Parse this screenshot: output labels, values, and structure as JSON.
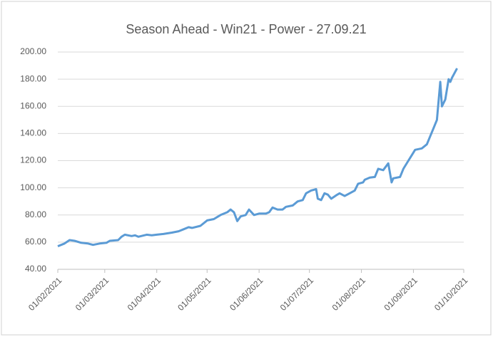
{
  "chart_data": {
    "type": "line",
    "title": "Season Ahead - Win21 - Power - 27.09.21",
    "color": "#5b9bd5",
    "grid": true,
    "x": [
      "2021-02-01",
      "2021-02-05",
      "2021-02-08",
      "2021-02-11",
      "2021-02-15",
      "2021-02-19",
      "2021-02-22",
      "2021-02-26",
      "2021-03-02",
      "2021-03-04",
      "2021-03-09",
      "2021-03-11",
      "2021-03-13",
      "2021-03-17",
      "2021-03-19",
      "2021-03-21",
      "2021-03-26",
      "2021-03-29",
      "2021-04-01",
      "2021-04-05",
      "2021-04-10",
      "2021-04-14",
      "2021-04-17",
      "2021-04-20",
      "2021-04-22",
      "2021-04-27",
      "2021-05-01",
      "2021-05-05",
      "2021-05-09",
      "2021-05-13",
      "2021-05-15",
      "2021-05-17",
      "2021-05-19",
      "2021-05-21",
      "2021-05-24",
      "2021-05-26",
      "2021-05-29",
      "2021-06-01",
      "2021-06-05",
      "2021-06-07",
      "2021-06-09",
      "2021-06-12",
      "2021-06-15",
      "2021-06-17",
      "2021-06-21",
      "2021-06-24",
      "2021-06-27",
      "2021-06-29",
      "2021-07-02",
      "2021-07-05",
      "2021-07-06",
      "2021-07-08",
      "2021-07-10",
      "2021-07-12",
      "2021-07-14",
      "2021-07-17",
      "2021-07-19",
      "2021-07-22",
      "2021-07-25",
      "2021-07-28",
      "2021-07-30",
      "2021-08-02",
      "2021-08-03",
      "2021-08-06",
      "2021-08-09",
      "2021-08-11",
      "2021-08-14",
      "2021-08-17",
      "2021-08-19",
      "2021-08-20",
      "2021-08-24",
      "2021-08-26",
      "2021-08-29",
      "2021-08-31",
      "2021-09-02",
      "2021-09-06",
      "2021-09-09",
      "2021-09-11",
      "2021-09-13",
      "2021-09-15",
      "2021-09-17",
      "2021-09-18",
      "2021-09-20",
      "2021-09-22",
      "2021-09-23",
      "2021-09-24",
      "2021-09-27"
    ],
    "values": [
      57,
      59,
      61.5,
      61,
      59.5,
      59,
      58,
      59,
      59.5,
      61,
      61.5,
      64,
      65.5,
      64.5,
      65,
      64,
      65.5,
      65,
      65.5,
      66,
      67,
      68,
      69.5,
      71,
      70.5,
      72,
      76,
      77,
      80,
      82,
      84,
      82,
      75.5,
      79,
      80,
      84,
      80,
      81,
      81,
      82,
      85.5,
      84,
      84,
      86,
      87,
      90,
      91,
      96,
      98,
      99,
      92,
      91,
      96,
      95,
      92,
      94.5,
      96,
      94,
      96,
      98,
      103,
      104,
      106,
      107.5,
      108,
      114,
      113,
      118,
      104,
      107,
      108,
      114,
      120,
      124,
      128,
      129,
      132,
      138,
      144,
      150,
      178,
      160,
      165,
      180,
      178,
      181,
      188
    ],
    "xlim": [
      "2021-02-01",
      "2021-10-01"
    ],
    "xticks": [
      {
        "value": "2021-02-01",
        "label": "01/02/2021"
      },
      {
        "value": "2021-03-01",
        "label": "01/03/2021"
      },
      {
        "value": "2021-04-01",
        "label": "01/04/2021"
      },
      {
        "value": "2021-05-01",
        "label": "01/05/2021"
      },
      {
        "value": "2021-06-01",
        "label": "01/06/2021"
      },
      {
        "value": "2021-07-01",
        "label": "01/07/2021"
      },
      {
        "value": "2021-08-01",
        "label": "01/08/2021"
      },
      {
        "value": "2021-09-01",
        "label": "01/09/2021"
      },
      {
        "value": "2021-10-01",
        "label": "01/10/2021"
      }
    ],
    "ylim": [
      40,
      200
    ],
    "yticks": [
      {
        "value": 40,
        "label": "40.00"
      },
      {
        "value": 60,
        "label": "60.00"
      },
      {
        "value": 80,
        "label": "80.00"
      },
      {
        "value": 100,
        "label": "100.00"
      },
      {
        "value": 120,
        "label": "120.00"
      },
      {
        "value": 140,
        "label": "140.00"
      },
      {
        "value": 160,
        "label": "160.00"
      },
      {
        "value": 180,
        "label": "180.00"
      },
      {
        "value": 200,
        "label": "200.00"
      }
    ]
  }
}
